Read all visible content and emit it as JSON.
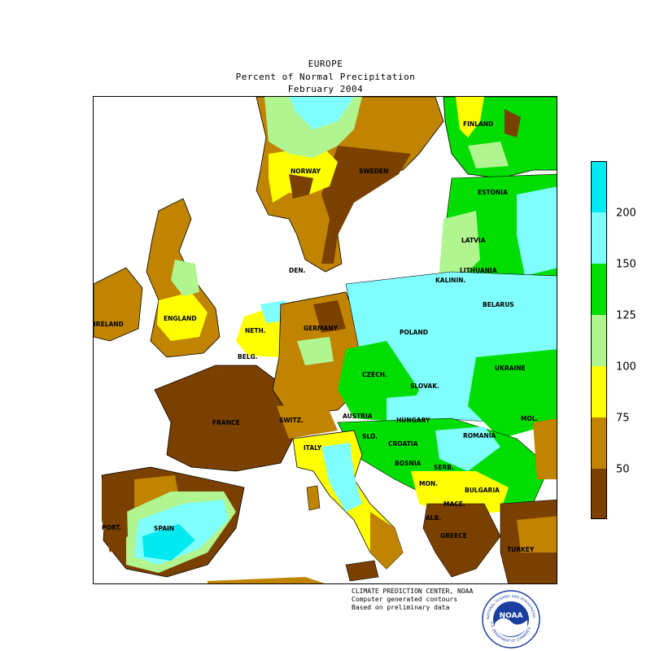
{
  "header": {
    "region": "EUROPE",
    "metric": "Percent of Normal Precipitation",
    "period": "February 2004"
  },
  "colors": {
    "lt50": "#7a4000",
    "50-75": "#c08400",
    "75-100": "#ffff00",
    "100-125": "#b0f590",
    "125-150": "#00dd00",
    "150-200": "#80ffff",
    "gt200": "#00e8f0",
    "border": "#000000"
  },
  "legend": {
    "ticks": [
      "50",
      "75",
      "100",
      "125",
      "150",
      "200"
    ]
  },
  "countries": [
    "FINLAND",
    "NORWAY",
    "SWEDEN",
    "ESTONIA",
    "LATVIA",
    "LITHUANIA",
    "KALININ.",
    "DEN.",
    "BELARUS",
    "IRELAND",
    "ENGLAND",
    "NETH.",
    "GERMANY",
    "POLAND",
    "BELG.",
    "CZECH.",
    "SLOVAK.",
    "UKRAINE",
    "FRANCE",
    "SWITZ.",
    "AUSTRIA",
    "HUNGARY",
    "MOL.",
    "SLO.",
    "CROATIA",
    "ROMANIA",
    "ITALY",
    "BOSNIA",
    "SERB.",
    "MON.",
    "BULGARIA",
    "MACE.",
    "ALB.",
    "PORT.",
    "SPAIN",
    "GREECE",
    "TURKEY"
  ],
  "credits": {
    "line1": "CLIMATE PREDICTION CENTER, NOAA",
    "line2": "Computer generated contours",
    "line3": "Based on preliminary data"
  },
  "logo": {
    "text": "NOAA",
    "ring_text": "NATIONAL OCEANIC AND ATMOSPHERIC ADMINISTRATION",
    "ring_text_bottom": "U.S. DEPARTMENT OF COMMERCE"
  }
}
